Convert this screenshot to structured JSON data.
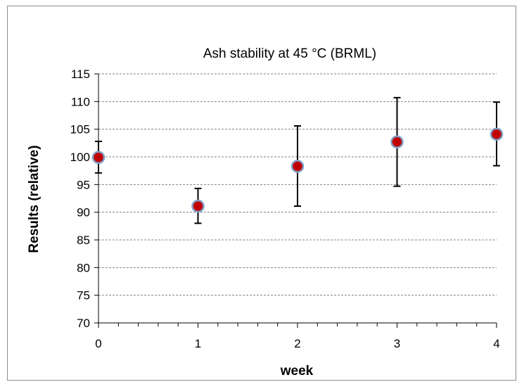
{
  "chart_data": {
    "type": "scatter",
    "title": "Ash stability at 45 °C (BRML)",
    "xlabel": "week",
    "ylabel": "Results (relative)",
    "xlim": [
      0,
      4
    ],
    "ylim": [
      70,
      115
    ],
    "x_ticks": [
      "0",
      "1",
      "2",
      "3",
      "4"
    ],
    "y_ticks": [
      "70",
      "75",
      "80",
      "85",
      "90",
      "95",
      "100",
      "105",
      "110",
      "115"
    ],
    "grid": "horizontal-dashed",
    "legend": "none",
    "points": [
      {
        "x": 0,
        "y": 99.9,
        "err_low": 97.1,
        "err_high": 102.8
      },
      {
        "x": 1,
        "y": 91.1,
        "err_low": 88.0,
        "err_high": 94.3
      },
      {
        "x": 2,
        "y": 98.3,
        "err_low": 91.1,
        "err_high": 105.6
      },
      {
        "x": 3,
        "y": 102.7,
        "err_low": 94.7,
        "err_high": 110.7
      },
      {
        "x": 4,
        "y": 104.1,
        "err_low": 98.4,
        "err_high": 109.9
      }
    ],
    "colors": {
      "marker_fill": "#c00000",
      "marker_edge": "#7f9fc8",
      "errorbar": "#000000",
      "gridline": "#808080"
    }
  }
}
